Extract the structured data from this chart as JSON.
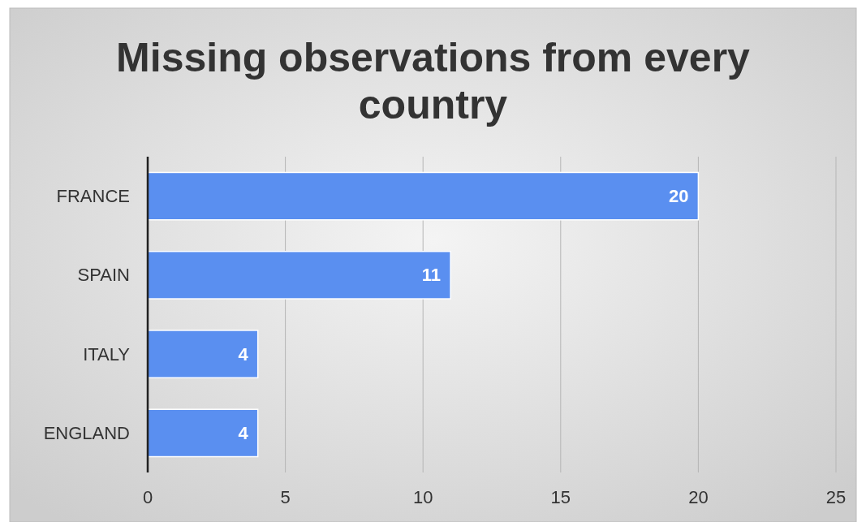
{
  "chart_data": {
    "type": "bar",
    "orientation": "horizontal",
    "title": "Missing observations from every country",
    "categories": [
      "FRANCE",
      "SPAIN",
      "ITALY",
      "ENGLAND"
    ],
    "values": [
      20,
      11,
      4,
      4
    ],
    "color": "#5a8ff0",
    "xlim": [
      0,
      25
    ],
    "xticks": [
      0,
      5,
      10,
      15,
      20,
      25
    ],
    "grid": "x",
    "data_labels": true
  }
}
